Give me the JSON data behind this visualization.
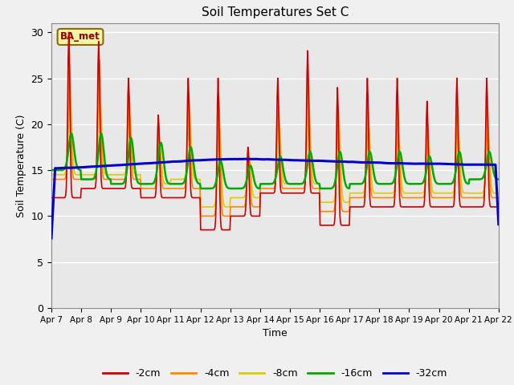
{
  "title": "Soil Temperatures Set C",
  "xlabel": "Time",
  "ylabel": "Soil Temperature (C)",
  "ylim": [
    0,
    31
  ],
  "yticks": [
    0,
    5,
    10,
    15,
    20,
    25,
    30
  ],
  "background_color": "#dcdcdc",
  "plot_bg_color": "#e8e8e8",
  "annotation_label": "BA_met",
  "series_colors": {
    "-2cm": "#cc0000",
    "-4cm": "#ff8800",
    "-8cm": "#ddcc00",
    "-16cm": "#00aa00",
    "-32cm": "#0000cc"
  },
  "series_linewidths": {
    "-2cm": 1.2,
    "-4cm": 1.2,
    "-8cm": 1.2,
    "-16cm": 1.8,
    "-32cm": 2.2
  },
  "x_labels": [
    "Apr 7",
    "Apr 8",
    "Apr 9",
    "Apr 10",
    "Apr 11",
    "Apr 12",
    "Apr 13",
    "Apr 14",
    "Apr 15",
    "Apr 16",
    "Apr 17",
    "Apr 18",
    "Apr 19",
    "Apr 20",
    "Apr 21",
    "Apr 22"
  ],
  "n_days": 15,
  "ppd": 48,
  "day_peak_2cm": [
    30,
    29,
    25,
    21,
    25,
    25,
    17.5,
    25,
    28,
    24,
    25,
    25,
    22.5,
    25,
    25
  ],
  "day_min_2cm": [
    12,
    13,
    13,
    12,
    12,
    8.5,
    10,
    12.5,
    12.5,
    9,
    11,
    11,
    11,
    11,
    11
  ],
  "day_peak_4cm": [
    26.5,
    27,
    23,
    19,
    23,
    23,
    17,
    22,
    25,
    22,
    22,
    22,
    20,
    22,
    22
  ],
  "day_min_4cm": [
    14,
    14,
    14,
    13,
    13,
    10,
    11,
    13,
    13,
    10.5,
    12,
    12,
    12,
    12,
    12
  ],
  "day_peak_8cm": [
    23,
    23,
    21,
    18,
    21,
    20,
    16.5,
    20,
    21,
    20,
    20,
    19,
    18,
    19.5,
    19
  ],
  "day_min_8cm": [
    14.5,
    14.5,
    14.5,
    13.5,
    14,
    11,
    12,
    13.5,
    13.5,
    11.5,
    12.5,
    12.5,
    12.5,
    12.5,
    12.5
  ],
  "day_peak_16cm": [
    19,
    19,
    18.5,
    18,
    17.5,
    16,
    15.5,
    16.5,
    17,
    17,
    17,
    17,
    16.5,
    17,
    17
  ],
  "day_min_16cm": [
    15,
    14,
    13.5,
    13.5,
    13.5,
    13,
    13,
    13.5,
    13.5,
    13,
    13.5,
    13.5,
    13.5,
    13.5,
    14
  ],
  "d32_vals": [
    15.2,
    15.3,
    15.5,
    15.7,
    15.9,
    16.1,
    16.2,
    16.2,
    16.1,
    16.0,
    15.9,
    15.8,
    15.7,
    15.7,
    15.6,
    15.6
  ]
}
